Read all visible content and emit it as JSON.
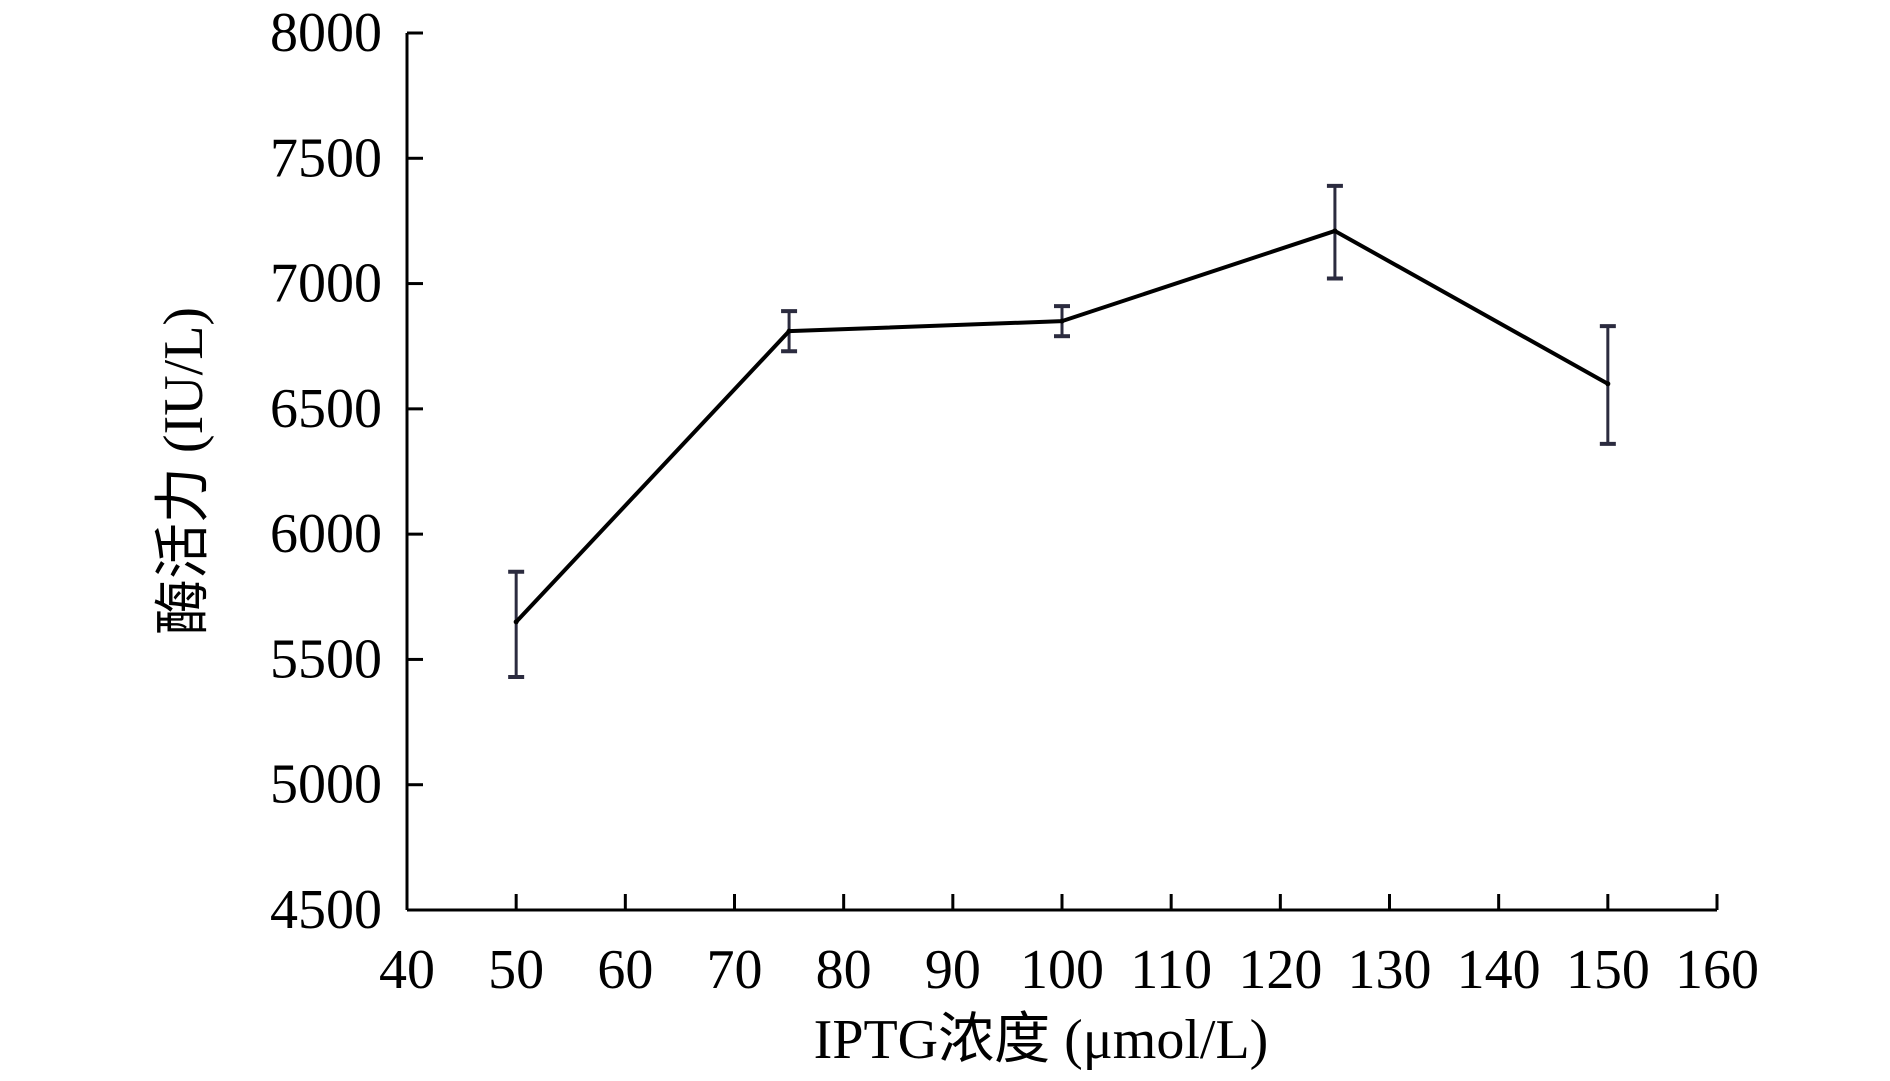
{
  "chart_data": {
    "type": "line",
    "title": "",
    "xlabel": "IPTG浓度 (μmol/L)",
    "ylabel": "酶活力 (IU/L)",
    "xlim": [
      40,
      160
    ],
    "ylim": [
      4500,
      8000
    ],
    "x_ticks": [
      "40",
      "50",
      "60",
      "70",
      "80",
      "90",
      "100",
      "110",
      "120",
      "130",
      "140",
      "150",
      "160"
    ],
    "y_ticks": [
      "4500",
      "5000",
      "5500",
      "6000",
      "6500",
      "7000",
      "7500",
      "8000"
    ],
    "grid": false,
    "legend": "none",
    "series": [
      {
        "x": [
          50,
          75,
          100,
          125,
          150
        ],
        "values": [
          5650,
          6810,
          6850,
          7210,
          6600
        ],
        "error": [
          [
            220,
            200
          ],
          [
            80,
            80
          ],
          [
            60,
            60
          ],
          [
            190,
            180
          ],
          [
            240,
            230
          ]
        ]
      }
    ],
    "colors": {
      "line": "#000000",
      "error_bar": "#2b2b3f",
      "axis": "#000000"
    }
  }
}
